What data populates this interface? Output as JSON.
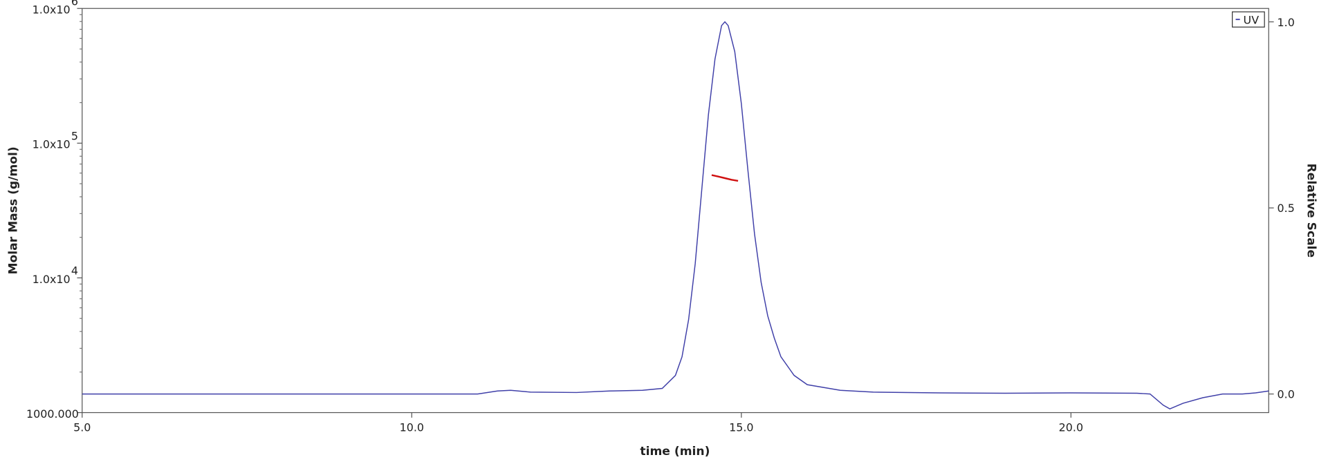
{
  "chart_data": {
    "type": "line",
    "xlabel": "time (min)",
    "ylabel": "Molar Mass (g/mol)",
    "y2label": "Relative Scale",
    "xlim": [
      5,
      23.0
    ],
    "xticks": [
      {
        "value": 5,
        "label": "5.0"
      },
      {
        "value": 10,
        "label": "10.0"
      },
      {
        "value": 15,
        "label": "15.0"
      },
      {
        "value": 20,
        "label": "20.0"
      }
    ],
    "ylim": [
      1000,
      1000000
    ],
    "yscale": "log",
    "yticks": [
      {
        "value": 1000,
        "label": "1000.000"
      },
      {
        "value": 10000,
        "label": "1.0x10",
        "exponent": "4"
      },
      {
        "value": 100000,
        "label": "1.0x10",
        "exponent": "5"
      },
      {
        "value": 1000000,
        "label": "1.0x10",
        "exponent": "6"
      }
    ],
    "y2lim": [
      -0.05,
      1.036
    ],
    "y2ticks": [
      {
        "value": 0,
        "label": "0.0"
      },
      0.5,
      {
        "value": 1,
        "label": "1.0"
      }
    ],
    "legend": "top-right",
    "series": [
      {
        "name": "UV",
        "color": "#3f3fa8",
        "axis": "y2",
        "x": [
          5.0,
          11.0,
          11.3,
          11.5,
          11.8,
          12.5,
          13.0,
          13.5,
          13.8,
          14.0,
          14.1,
          14.2,
          14.3,
          14.4,
          14.5,
          14.6,
          14.7,
          14.75,
          14.8,
          14.9,
          15.0,
          15.1,
          15.2,
          15.3,
          15.4,
          15.5,
          15.6,
          15.8,
          16.0,
          16.5,
          17.0,
          18.0,
          19.0,
          20.0,
          21.0,
          21.2,
          21.4,
          21.5,
          21.7,
          22.0,
          22.3,
          22.6,
          22.8,
          23.0
        ],
        "values": [
          0.0,
          0.0,
          0.008,
          0.01,
          0.005,
          0.004,
          0.008,
          0.01,
          0.015,
          0.05,
          0.1,
          0.2,
          0.35,
          0.55,
          0.75,
          0.9,
          0.99,
          1.0,
          0.99,
          0.92,
          0.78,
          0.6,
          0.43,
          0.3,
          0.21,
          0.15,
          0.1,
          0.05,
          0.025,
          0.01,
          0.005,
          0.003,
          0.002,
          0.003,
          0.002,
          0.0,
          -0.03,
          -0.04,
          -0.025,
          -0.01,
          0.0,
          0.0,
          0.003,
          0.008
        ]
      },
      {
        "color": "#d01010",
        "axis": "y",
        "x": [
          14.55,
          14.65,
          14.75,
          14.85,
          14.95
        ],
        "values": [
          58000,
          56500,
          55000,
          53500,
          52500
        ]
      }
    ]
  }
}
